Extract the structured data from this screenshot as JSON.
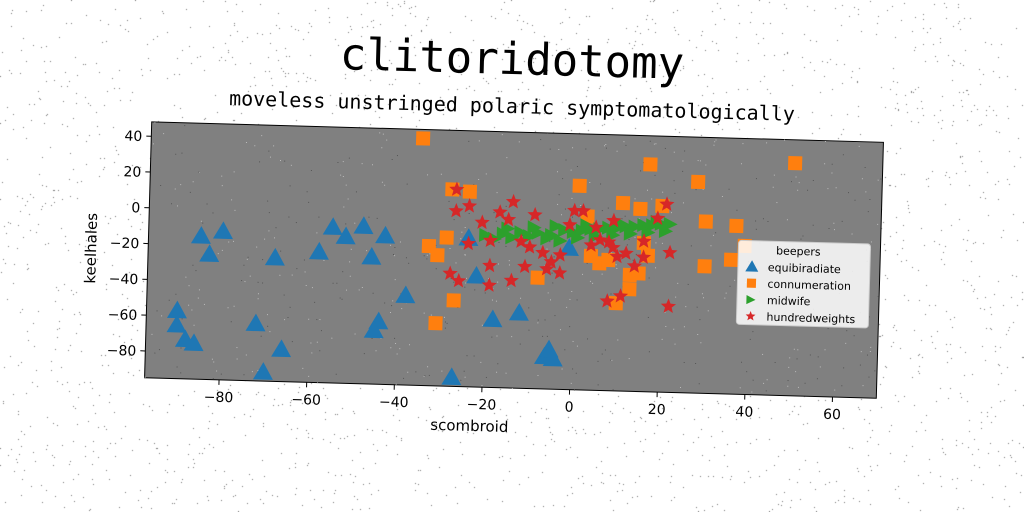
{
  "title": "clitoridotomy",
  "subtitle": "moveless unstringed polaric symptomatologically",
  "chart_data": {
    "type": "scatter",
    "xlabel": "scombroid",
    "ylabel": "keelhales",
    "xlim": [
      -97,
      70
    ],
    "ylim": [
      -95,
      48
    ],
    "xticks": [
      -80,
      -60,
      -40,
      -20,
      0,
      20,
      40,
      60
    ],
    "yticks": [
      40,
      20,
      0,
      -20,
      -40,
      -60,
      -80
    ],
    "xtick_labels": [
      "−80",
      "−60",
      "−40",
      "−20",
      "0",
      "20",
      "40",
      "60"
    ],
    "ytick_labels": [
      "40",
      "20",
      "0",
      "−20",
      "−40",
      "−60",
      "−80"
    ],
    "grid": false,
    "legend": {
      "title": "beepers",
      "placement": "right"
    },
    "series": [
      {
        "name": "equibiradiate",
        "marker": "triangle-up",
        "color": "#1f77b4",
        "points": [
          [
            -85,
            -15
          ],
          [
            -80,
            -12
          ],
          [
            -83,
            -25
          ],
          [
            -68,
            -26
          ],
          [
            -58,
            -22
          ],
          [
            -55,
            -8
          ],
          [
            -52,
            -13
          ],
          [
            -48,
            -7
          ],
          [
            -46,
            -24
          ],
          [
            -43,
            -12
          ],
          [
            -38,
            -45
          ],
          [
            -44,
            -60
          ],
          [
            -45,
            -65
          ],
          [
            -72,
            -63
          ],
          [
            -70,
            -90
          ],
          [
            -66,
            -77
          ],
          [
            -90,
            -57
          ],
          [
            -90,
            -65
          ],
          [
            -88,
            -73
          ],
          [
            -86,
            -75
          ],
          [
            -27,
            -90
          ],
          [
            -24,
            -12
          ],
          [
            -22,
            -33
          ],
          [
            -18,
            -57
          ],
          [
            -12,
            -53
          ],
          [
            -6,
            -77
          ],
          [
            -5,
            -73
          ],
          [
            -4,
            -78
          ],
          [
            -1,
            -16
          ]
        ]
      },
      {
        "name": "connumeration",
        "marker": "square",
        "color": "#ff7f0e",
        "points": [
          [
            -35,
            43
          ],
          [
            -28,
            15
          ],
          [
            -24,
            14
          ],
          [
            -33,
            -17
          ],
          [
            -31,
            -22
          ],
          [
            -29,
            -12
          ],
          [
            -27,
            -47
          ],
          [
            -31,
            -60
          ],
          [
            -8,
            -33
          ],
          [
            1,
            19
          ],
          [
            3,
            2
          ],
          [
            4,
            -20
          ],
          [
            6,
            -24
          ],
          [
            8,
            -22
          ],
          [
            10,
            -46
          ],
          [
            11,
            10
          ],
          [
            13,
            -38
          ],
          [
            13,
            -30
          ],
          [
            15,
            7
          ],
          [
            15,
            -29
          ],
          [
            16,
            -12
          ],
          [
            17,
            -19
          ],
          [
            17,
            32
          ],
          [
            20,
            9
          ],
          [
            28,
            23
          ],
          [
            30,
            -24
          ],
          [
            30,
            1
          ],
          [
            36,
            -20
          ],
          [
            37,
            -1
          ],
          [
            39,
            -12
          ],
          [
            50,
            35
          ]
        ]
      },
      {
        "name": "midwife",
        "marker": "triangle-right",
        "color": "#2ca02c",
        "points": [
          [
            -20,
            -10
          ],
          [
            -16,
            -9
          ],
          [
            -12,
            -8
          ],
          [
            -8,
            -8
          ],
          [
            -5,
            -9
          ],
          [
            -2,
            -6
          ],
          [
            0,
            -7
          ],
          [
            2,
            -6
          ],
          [
            4,
            -5
          ],
          [
            6,
            -5
          ],
          [
            8,
            -4
          ],
          [
            10,
            -4
          ],
          [
            12,
            -3
          ],
          [
            14,
            -3
          ],
          [
            16,
            -2
          ],
          [
            18,
            -2
          ],
          [
            20,
            -1
          ],
          [
            22,
            -1
          ],
          [
            -18,
            -12
          ],
          [
            -14,
            -11
          ],
          [
            -10,
            -10
          ],
          [
            -6,
            -11
          ],
          [
            -3,
            -12
          ],
          [
            1,
            -10
          ],
          [
            5,
            -9
          ],
          [
            9,
            -8
          ],
          [
            13,
            -7
          ],
          [
            17,
            -6
          ],
          [
            21,
            -5
          ],
          [
            -15,
            -6
          ],
          [
            -9,
            -5
          ],
          [
            -4,
            -4
          ],
          [
            3,
            -3
          ],
          [
            11,
            -2
          ],
          [
            19,
            0
          ]
        ]
      },
      {
        "name": "hundredweights",
        "marker": "star",
        "color": "#d62728",
        "points": [
          [
            -27,
            15
          ],
          [
            -27,
            3
          ],
          [
            -24,
            6
          ],
          [
            -24,
            -15
          ],
          [
            -21,
            -3
          ],
          [
            -19,
            -13
          ],
          [
            -17,
            3
          ],
          [
            -15,
            -1
          ],
          [
            -14,
            9
          ],
          [
            -12,
            -13
          ],
          [
            -10,
            -16
          ],
          [
            -9,
            2
          ],
          [
            -6,
            -28
          ],
          [
            -5,
            -24
          ],
          [
            -3,
            -20
          ],
          [
            -1,
            -3
          ],
          [
            2,
            5
          ],
          [
            4,
            -14
          ],
          [
            6,
            -11
          ],
          [
            8,
            -12
          ],
          [
            8,
            -45
          ],
          [
            9,
            0
          ],
          [
            10,
            -20
          ],
          [
            12,
            -18
          ],
          [
            14,
            -25
          ],
          [
            16,
            -11
          ],
          [
            16,
            -20
          ],
          [
            19,
            2
          ],
          [
            21,
            10
          ],
          [
            22,
            -47
          ],
          [
            22,
            -17
          ],
          [
            -28,
            -32
          ],
          [
            -26,
            -36
          ],
          [
            -19,
            -27
          ],
          [
            -19,
            -38
          ],
          [
            -14,
            -35
          ],
          [
            -11,
            -27
          ],
          [
            -7,
            -19
          ],
          [
            -3,
            -30
          ],
          [
            0,
            5
          ],
          [
            5,
            -4
          ],
          [
            9,
            -15
          ],
          [
            11,
            -42
          ]
        ]
      }
    ]
  }
}
